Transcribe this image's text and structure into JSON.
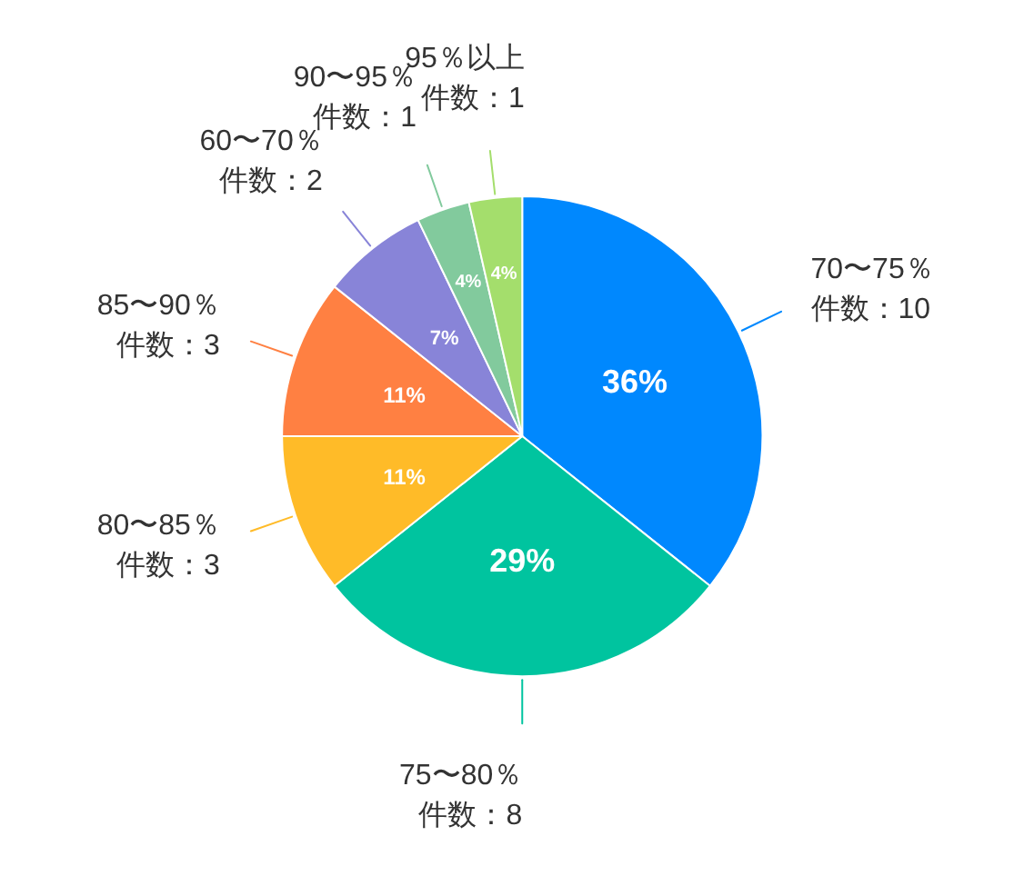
{
  "chart_data": {
    "type": "pie",
    "categories": [
      "70〜75％",
      "75〜80％",
      "80〜85％",
      "85〜90％",
      "60〜70％",
      "90〜95％",
      "95％以上"
    ],
    "values": [
      10,
      8,
      3,
      3,
      2,
      1,
      1
    ],
    "colors": [
      "#0088fe",
      "#00c49f",
      "#ffbb28",
      "#ff8042",
      "#8884d8",
      "#82ca9d",
      "#a4de6c"
    ],
    "value_labels": [
      "件数：10",
      "件数：8",
      "件数：3",
      "件数：3",
      "件数：2",
      "件数：1",
      "件数：1"
    ],
    "annotations": [
      {
        "text": "36%",
        "x": "70〜75％"
      },
      {
        "text": "29%",
        "x": "75〜80％"
      },
      {
        "text": "11%",
        "x": "80〜85％"
      },
      {
        "text": "11%",
        "x": "85〜90％"
      },
      {
        "text": "7%",
        "x": "60〜70％"
      },
      {
        "text": "4%",
        "x": "90〜95％"
      },
      {
        "text": "4%",
        "x": "95％以上"
      }
    ]
  }
}
